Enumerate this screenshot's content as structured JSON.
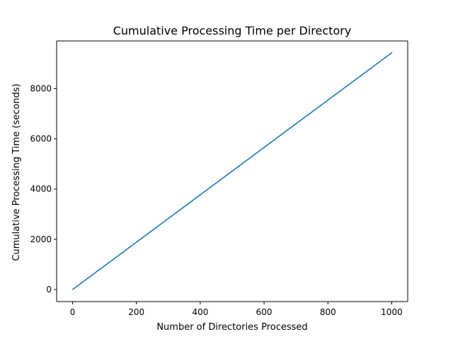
{
  "chart_data": {
    "type": "line",
    "title": "Cumulative Processing Time per Directory",
    "xlabel": "Number of Directories Processed",
    "ylabel": "Cumulative Processing Time (seconds)",
    "xlim": [
      -50,
      1050
    ],
    "ylim": [
      -480,
      9900
    ],
    "xticks": [
      0,
      200,
      400,
      600,
      800,
      1000
    ],
    "yticks": [
      0,
      2000,
      4000,
      6000,
      8000
    ],
    "grid": false,
    "legend": "none",
    "series": [
      {
        "color": "#1f77b4",
        "x": [
          1,
          1000
        ],
        "y": [
          9,
          9430
        ]
      }
    ]
  }
}
